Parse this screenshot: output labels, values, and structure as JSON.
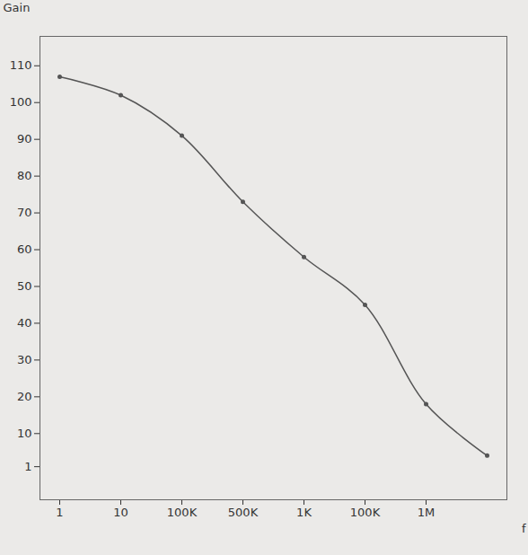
{
  "chart_data": {
    "type": "line",
    "x_label": "f",
    "y_label": "Gain",
    "categories": [
      "1",
      "10",
      "100K",
      "500K",
      "1K",
      "100K",
      "1M",
      null
    ],
    "values": [
      107,
      102,
      91,
      73,
      58,
      45,
      18,
      4
    ],
    "color": "#555555",
    "marker": "dot",
    "line_style": "solid",
    "ylim": [
      -8,
      118
    ],
    "yticks": [
      1,
      10,
      20,
      30,
      40,
      50,
      60,
      70,
      80,
      90,
      100,
      110
    ],
    "grid": false
  }
}
